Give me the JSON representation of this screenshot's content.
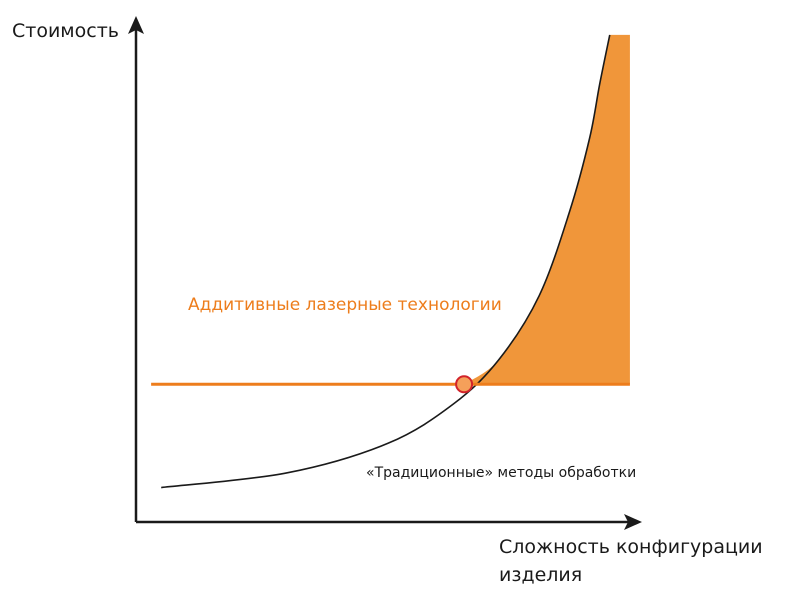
{
  "chart_data": {
    "type": "line",
    "ylabel": "Стоимость",
    "xlabel_lines": [
      "Сложность конфигурации",
      "изделия"
    ],
    "xlim": [
      0,
      1
    ],
    "ylim": [
      0,
      1
    ],
    "grid": false,
    "series": [
      {
        "name": "Аддитивные лазерные технологии",
        "style": "horizontal-line",
        "color": "#ED7D1C",
        "x": [
          0.03,
          0.98
        ],
        "y": [
          0.28,
          0.28
        ]
      },
      {
        "name": "«Традиционные» методы обработки",
        "style": "curve",
        "color": "#1a1a1a",
        "x": [
          0.05,
          0.3,
          0.5,
          0.63,
          0.72,
          0.8,
          0.86,
          0.9,
          0.92,
          0.94
        ],
        "y": [
          0.07,
          0.1,
          0.16,
          0.24,
          0.33,
          0.46,
          0.63,
          0.78,
          0.89,
          0.99
        ]
      }
    ],
    "shaded_region": {
      "description": "",
      "color": "#F0963A",
      "x_range": [
        0.651,
        0.98
      ],
      "y_min": 0.28,
      "y_max": 0.99
    },
    "intersection": {
      "x": 0.651,
      "y": 0.28,
      "fill": "#F5A05A",
      "stroke": "#D2232A"
    }
  }
}
